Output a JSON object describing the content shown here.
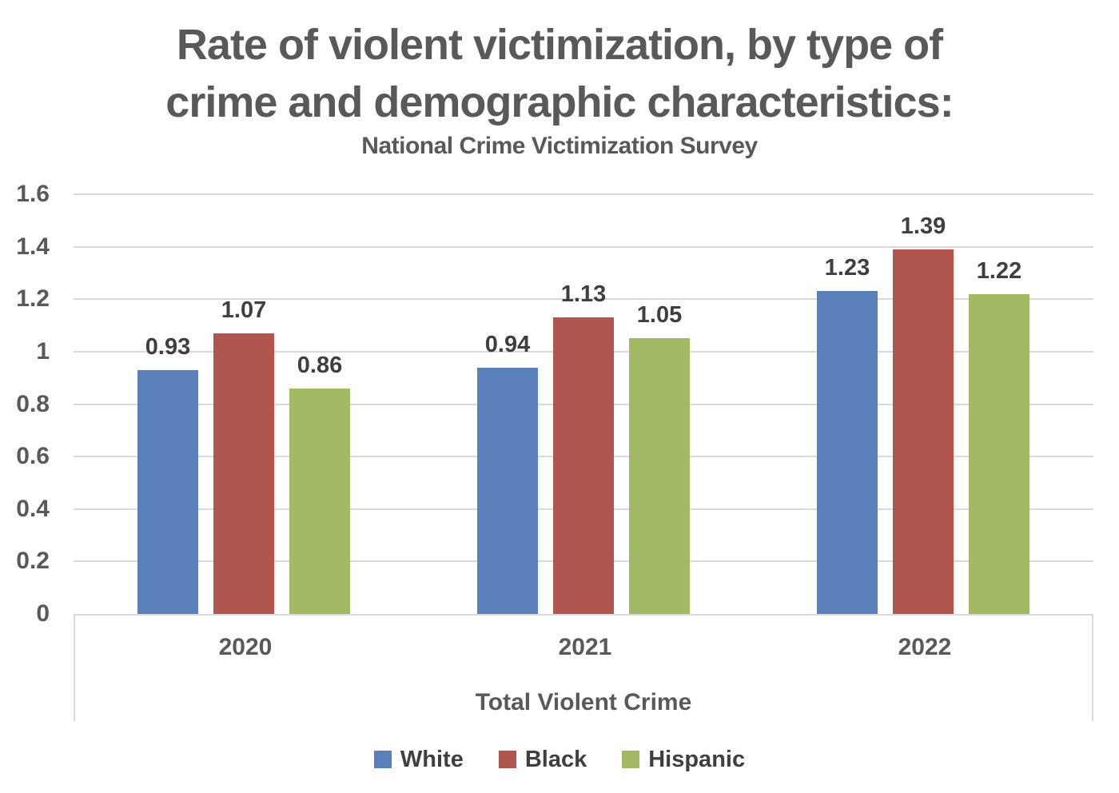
{
  "title": {
    "line1": "Rate of violent victimization, by type of",
    "line2": "crime and demographic characteristics:",
    "subtitle": "National Crime Victimization Survey"
  },
  "chart_data": {
    "type": "bar",
    "categories": [
      "2020",
      "2021",
      "2022"
    ],
    "series": [
      {
        "name": "White",
        "color": "#5B80B9",
        "values": [
          0.93,
          0.94,
          1.23
        ]
      },
      {
        "name": "Black",
        "color": "#B1564F",
        "values": [
          1.07,
          1.13,
          1.39
        ]
      },
      {
        "name": "Hispanic",
        "color": "#A1BA63",
        "values": [
          0.86,
          1.05,
          1.22
        ]
      }
    ],
    "xlabel": "Total Violent Crime",
    "ylabel": "",
    "ylim": [
      0,
      1.6
    ],
    "yticks": [
      "0",
      "0.2",
      "0.4",
      "0.6",
      "0.8",
      "1",
      "1.2",
      "1.4",
      "1.6"
    ],
    "grid": true,
    "legend_position": "bottom",
    "value_labels": true,
    "gridline_color": "#D9D9D9",
    "text_color": "#595959",
    "label_color": "#3F3F3F"
  }
}
